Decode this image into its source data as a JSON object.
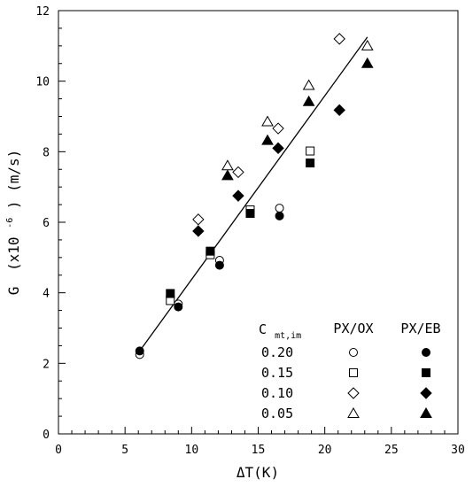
{
  "chart_data": {
    "type": "scatter",
    "title": "",
    "xlabel": "ΔT(K)",
    "ylabel_main": "G",
    "ylabel_paren_open": "(x10",
    "ylabel_exponent": "-6",
    "ylabel_paren_close": ") (m/s)",
    "xlim": [
      0,
      30
    ],
    "ylim": [
      0,
      12
    ],
    "x_ticks": [
      0,
      5,
      10,
      15,
      20,
      25,
      30
    ],
    "y_ticks": [
      0,
      2,
      4,
      6,
      8,
      10,
      12
    ],
    "x_minor_step": 1,
    "y_minor_step": 0.5,
    "grid": false,
    "legend": {
      "placement": "bottom-right",
      "header_main": "C",
      "header_sub": "mt,im",
      "col1": "PX/OX",
      "col2": "PX/EB",
      "rows": [
        "0.20",
        "0.15",
        "0.10",
        "0.05"
      ]
    },
    "series": [
      {
        "label": "0.20",
        "system": "PX/OX",
        "marker": "circle",
        "filled": false,
        "x": [
          6.1,
          9.0,
          12.1,
          16.6
        ],
        "y": [
          2.25,
          3.68,
          4.92,
          6.4
        ]
      },
      {
        "label": "0.20",
        "system": "PX/EB",
        "marker": "circle",
        "filled": true,
        "x": [
          6.1,
          9.0,
          12.1,
          16.6
        ],
        "y": [
          2.35,
          3.6,
          4.78,
          6.18
        ]
      },
      {
        "label": "0.15",
        "system": "PX/OX",
        "marker": "square",
        "filled": false,
        "x": [
          8.4,
          11.4,
          14.4,
          18.9
        ],
        "y": [
          3.78,
          5.08,
          6.35,
          8.02
        ]
      },
      {
        "label": "0.15",
        "system": "PX/EB",
        "marker": "square",
        "filled": true,
        "x": [
          8.4,
          11.4,
          14.4,
          18.9
        ],
        "y": [
          3.98,
          5.18,
          6.25,
          7.68
        ]
      },
      {
        "label": "0.10",
        "system": "PX/OX",
        "marker": "diamond",
        "filled": false,
        "x": [
          10.5,
          13.5,
          16.5,
          21.1
        ],
        "y": [
          6.08,
          7.42,
          8.66,
          11.2
        ]
      },
      {
        "label": "0.10",
        "system": "PX/EB",
        "marker": "diamond",
        "filled": true,
        "x": [
          10.5,
          13.5,
          16.5,
          21.1
        ],
        "y": [
          5.75,
          6.75,
          8.1,
          9.18
        ]
      },
      {
        "label": "0.05",
        "system": "PX/OX",
        "marker": "triangle",
        "filled": false,
        "x": [
          12.7,
          15.7,
          18.8,
          23.2
        ],
        "y": [
          7.6,
          8.85,
          9.88,
          11.0
        ]
      },
      {
        "label": "0.05",
        "system": "PX/EB",
        "marker": "triangle",
        "filled": true,
        "x": [
          12.7,
          15.7,
          18.8,
          23.2
        ],
        "y": [
          7.32,
          8.32,
          9.42,
          10.5
        ]
      }
    ],
    "fit_line": {
      "x": [
        6.1,
        23.2
      ],
      "y": [
        2.35,
        11.25
      ]
    }
  }
}
